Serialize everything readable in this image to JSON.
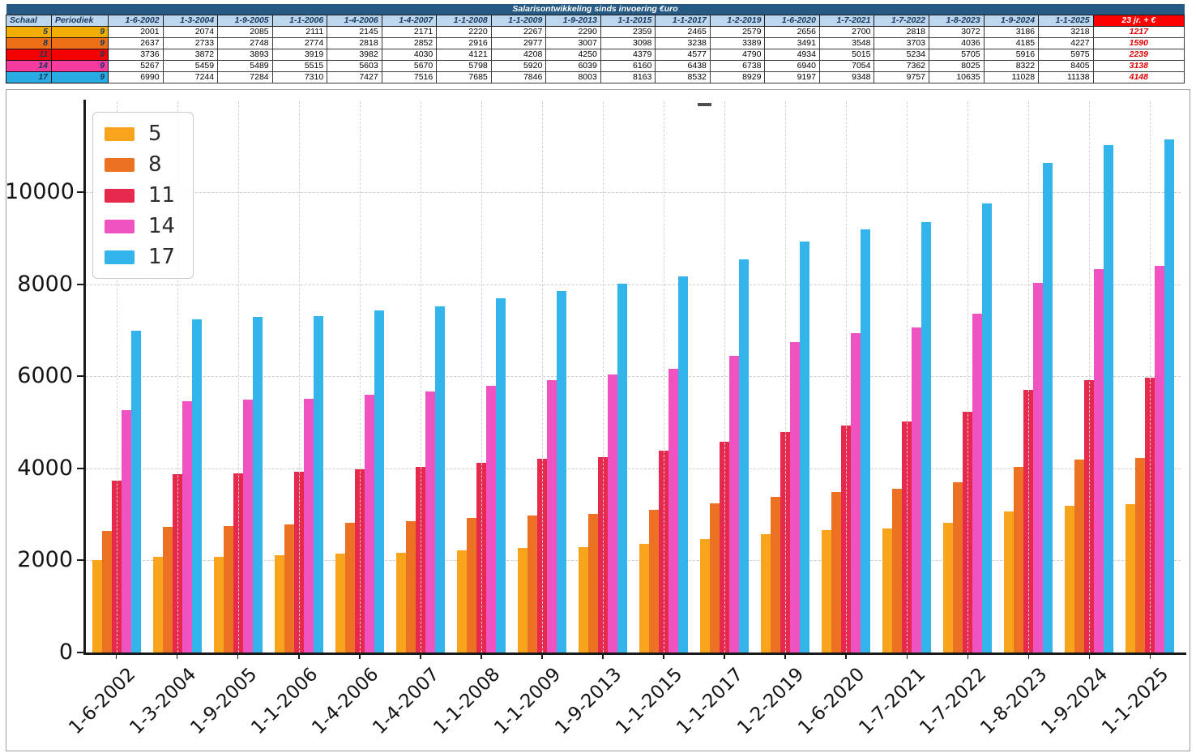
{
  "table": {
    "title": "Salarisontwikkeling sinds invoering €uro",
    "title_bg": "#265A84",
    "header_bg": "#BDD7EE",
    "header_text_color": "#17375E",
    "corner_headers": [
      "Schaal",
      "Periodiek"
    ],
    "date_headers": [
      "1-6-2002",
      "1-3-2004",
      "1-9-2005",
      "1-1-2006",
      "1-4-2006",
      "1-4-2007",
      "1-1-2008",
      "1-1-2009",
      "1-9-2013",
      "1-1-2015",
      "1-1-2017",
      "1-2-2019",
      "1-6-2020",
      "1-7-2021",
      "1-7-2022",
      "1-8-2023",
      "1-9-2024",
      "1-1-2025"
    ],
    "last_header": "23 jr. + €",
    "last_header_bg": "#FF0000",
    "increase_text_color": "#E00000",
    "rows": [
      {
        "schaal": "5",
        "periodiek": "9",
        "row_color": "#F2AE00",
        "values": [
          2001,
          2074,
          2085,
          2111,
          2145,
          2171,
          2220,
          2267,
          2290,
          2359,
          2465,
          2579,
          2656,
          2700,
          2818,
          3072,
          3186,
          3218
        ],
        "increase_23yr": "1217"
      },
      {
        "schaal": "8",
        "periodiek": "9",
        "row_color": "#ED7017",
        "values": [
          2637,
          2733,
          2748,
          2774,
          2818,
          2852,
          2916,
          2977,
          3007,
          3098,
          3238,
          3389,
          3491,
          3548,
          3703,
          4036,
          4185,
          4227
        ],
        "increase_23yr": "1590"
      },
      {
        "schaal": "11",
        "periodiek": "9",
        "row_color": "#F40000",
        "values": [
          3736,
          3872,
          3893,
          3919,
          3982,
          4030,
          4121,
          4208,
          4250,
          4379,
          4577,
          4790,
          4934,
          5015,
          5234,
          5705,
          5916,
          5975
        ],
        "increase_23yr": "2239"
      },
      {
        "schaal": "14",
        "periodiek": "9",
        "row_color": "#F53AA0",
        "values": [
          5267,
          5459,
          5489,
          5515,
          5603,
          5670,
          5798,
          5920,
          6039,
          6160,
          6438,
          6738,
          6940,
          7054,
          7362,
          8025,
          8322,
          8405
        ],
        "increase_23yr": "3138"
      },
      {
        "schaal": "17",
        "periodiek": "9",
        "row_color": "#29ACE3",
        "values": [
          6990,
          7244,
          7284,
          7310,
          7427,
          7516,
          7685,
          7846,
          8003,
          8163,
          8532,
          8929,
          9197,
          9348,
          9757,
          10635,
          11028,
          11138
        ],
        "increase_23yr": "4148"
      }
    ]
  },
  "chart_data": {
    "type": "bar",
    "title": "",
    "xlabel": "",
    "ylabel": "",
    "categories": [
      "1-6-2002",
      "1-3-2004",
      "1-9-2005",
      "1-1-2006",
      "1-4-2006",
      "1-4-2007",
      "1-1-2008",
      "1-1-2009",
      "1-9-2013",
      "1-1-2015",
      "1-1-2017",
      "1-2-2019",
      "1-6-2020",
      "1-7-2021",
      "1-7-2022",
      "1-8-2023",
      "1-9-2024",
      "1-1-2025"
    ],
    "series": [
      {
        "name": "5",
        "color": "#F8A51D",
        "values": [
          2001,
          2074,
          2085,
          2111,
          2145,
          2171,
          2220,
          2267,
          2290,
          2359,
          2465,
          2579,
          2656,
          2700,
          2818,
          3072,
          3186,
          3218
        ]
      },
      {
        "name": "8",
        "color": "#ED7122",
        "values": [
          2637,
          2733,
          2748,
          2774,
          2818,
          2852,
          2916,
          2977,
          3007,
          3098,
          3238,
          3389,
          3491,
          3548,
          3703,
          4036,
          4185,
          4227
        ]
      },
      {
        "name": "11",
        "color": "#E8294E",
        "values": [
          3736,
          3872,
          3893,
          3919,
          3982,
          4030,
          4121,
          4208,
          4250,
          4379,
          4577,
          4790,
          4934,
          5015,
          5234,
          5705,
          5916,
          5975
        ]
      },
      {
        "name": "14",
        "color": "#EF53C2",
        "values": [
          5267,
          5459,
          5489,
          5515,
          5603,
          5670,
          5798,
          5920,
          6039,
          6160,
          6438,
          6738,
          6940,
          7054,
          7362,
          8025,
          8322,
          8405
        ]
      },
      {
        "name": "17",
        "color": "#33B4EA",
        "values": [
          6990,
          7244,
          7284,
          7310,
          7427,
          7516,
          7685,
          7846,
          8003,
          8163,
          8532,
          8929,
          9197,
          9348,
          9757,
          10635,
          11028,
          11138
        ]
      }
    ],
    "ylim": [
      0,
      11900
    ],
    "yticks": [
      0,
      2000,
      4000,
      6000,
      8000,
      10000
    ],
    "grid": true,
    "grid_style": "dashed",
    "legend_position": "upper left",
    "x_tick_rotation": 45
  }
}
